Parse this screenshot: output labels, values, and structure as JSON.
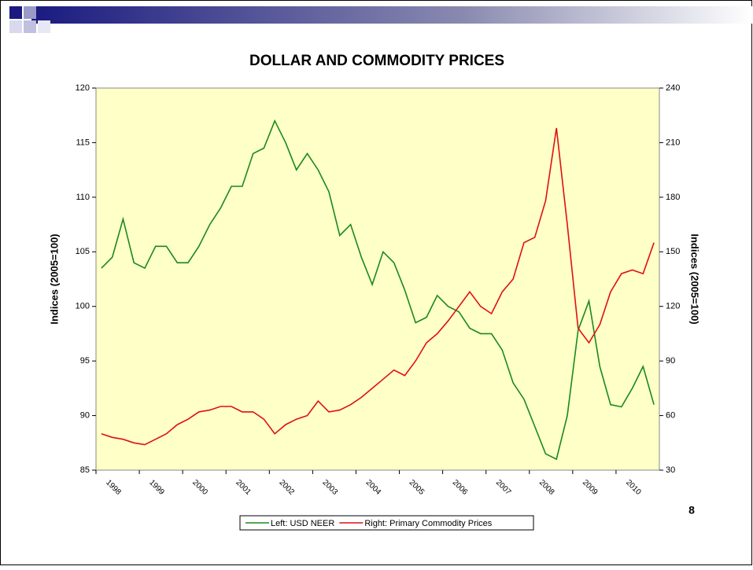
{
  "slide_number": "8",
  "chart_data": {
    "type": "line",
    "title": "DOLLAR AND COMMODITY PRICES",
    "ylabel": "Indices (2005=100)",
    "y2label": "Indices (2005=100)",
    "categories": [
      "1998",
      null,
      null,
      null,
      "1999",
      null,
      null,
      null,
      "2000",
      null,
      null,
      null,
      "2001",
      null,
      null,
      null,
      "2002",
      null,
      null,
      null,
      "2003",
      null,
      null,
      null,
      "2004",
      null,
      null,
      null,
      "2005",
      null,
      null,
      null,
      "2006",
      null,
      null,
      null,
      "2007",
      null,
      null,
      null,
      "2008",
      null,
      null,
      null,
      "2009",
      null,
      null,
      null,
      "2010",
      null,
      null,
      null
    ],
    "ylim": [
      85,
      120
    ],
    "yticks": [
      85,
      90,
      95,
      100,
      105,
      110,
      115,
      120
    ],
    "y2lim": [
      30,
      240
    ],
    "y2ticks": [
      30,
      60,
      90,
      120,
      150,
      180,
      210,
      240
    ],
    "legend": "bottom",
    "series": [
      {
        "name": "Left: USD NEER",
        "color": "#1a8a1a",
        "axis": "y",
        "values": [
          103.5,
          104.5,
          108,
          104,
          103.5,
          105.5,
          105.5,
          104,
          104,
          105.5,
          107.5,
          109,
          111,
          111,
          114,
          114.5,
          117,
          115,
          112.5,
          114,
          112.5,
          110.5,
          106.5,
          107.5,
          104.5,
          102,
          105,
          104,
          101.5,
          98.5,
          99,
          101,
          100,
          99.5,
          98,
          97.5,
          97.5,
          96,
          93,
          91.5,
          89,
          86.5,
          86,
          90,
          97.8,
          100.5,
          94.5,
          91,
          90.8,
          92.5,
          94.5,
          91
        ]
      },
      {
        "name": "Right: Primary Commodity Prices",
        "color": "#e01010",
        "axis": "y2",
        "values": [
          50,
          48,
          47,
          45,
          44,
          47,
          50,
          55,
          58,
          62,
          63,
          65,
          65,
          62,
          62,
          58,
          50,
          55,
          58,
          60,
          68,
          62,
          63,
          66,
          70,
          75,
          80,
          85,
          82,
          90,
          100,
          105,
          112,
          120,
          128,
          120,
          116,
          128,
          135,
          155,
          158,
          178,
          218,
          165,
          108,
          100,
          110,
          128,
          138,
          140,
          138,
          155
        ]
      }
    ]
  }
}
